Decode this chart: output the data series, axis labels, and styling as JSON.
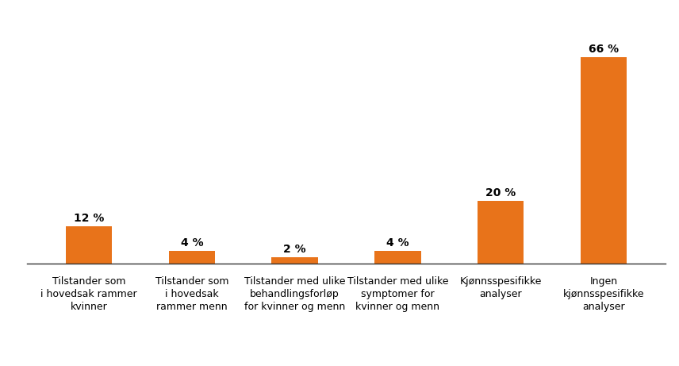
{
  "categories": [
    "Tilstander som\ni hovedsak rammer\nkvinner",
    "Tilstander som\ni hovedsak\nrammer menn",
    "Tilstander med ulike\nbehandlingsforløp\nfor kvinner og menn",
    "Tilstander med ulike\nsymptomer for\nkvinner og menn",
    "Kjønnsspesifikke\nanalyser",
    "Ingen\nkjønnsspesifikke\nanalyser"
  ],
  "values": [
    12,
    4,
    2,
    4,
    20,
    66
  ],
  "bar_color": "#E8731A",
  "ylim": [
    0,
    75
  ],
  "background_color": "#ffffff",
  "label_fontsize": 10,
  "tick_fontsize": 9,
  "bar_width": 0.45,
  "figwidth": 8.56,
  "figheight": 4.61,
  "dpi": 100
}
